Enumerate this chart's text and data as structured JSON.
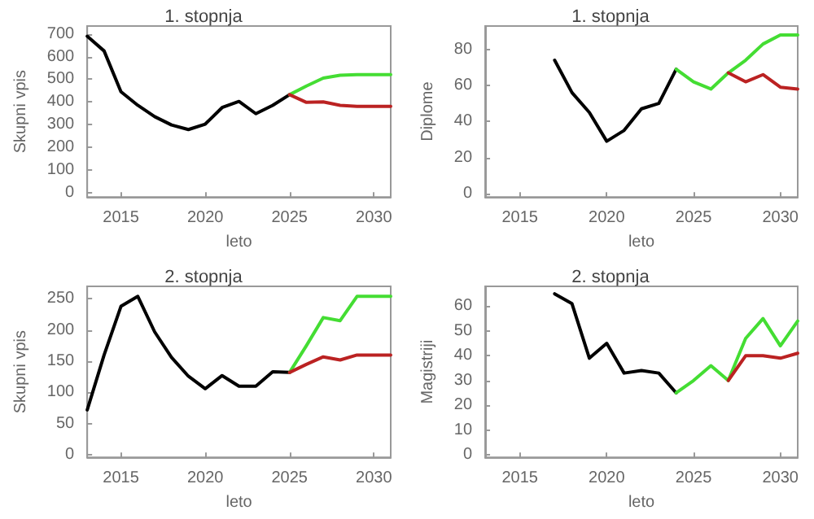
{
  "chart_data": [
    {
      "type": "line",
      "title": "1. stopnja",
      "xlabel": "leto",
      "ylabel": "Skupni vpis",
      "xlim": [
        2013,
        2031
      ],
      "ylim": [
        -20,
        735
      ],
      "xticks": [
        2015,
        2020,
        2025,
        2030
      ],
      "yticks": [
        0,
        100,
        200,
        300,
        400,
        500,
        600,
        700
      ],
      "marker": "none",
      "line_style": "solid",
      "series": [
        {
          "color": "#000000",
          "x": [
            2013,
            2014,
            2015,
            2016,
            2017,
            2018,
            2019,
            2020,
            2021,
            2022,
            2023,
            2024,
            2025
          ],
          "values": [
            690,
            625,
            445,
            385,
            335,
            298,
            278,
            302,
            375,
            402,
            348,
            385,
            432
          ]
        },
        {
          "color": "#44dd33",
          "x": [
            2025,
            2026,
            2027,
            2028,
            2029,
            2030,
            2031
          ],
          "values": [
            432,
            470,
            505,
            518,
            520,
            520,
            520
          ]
        },
        {
          "color": "#bb2222",
          "x": [
            2025,
            2026,
            2027,
            2028,
            2029,
            2030,
            2031
          ],
          "values": [
            432,
            398,
            400,
            385,
            380,
            380,
            380
          ]
        }
      ]
    },
    {
      "type": "line",
      "title": "1. stopnja",
      "xlabel": "leto",
      "ylabel": "Diplome",
      "xlim": [
        2013,
        2031
      ],
      "ylim": [
        -2,
        93
      ],
      "xticks": [
        2015,
        2020,
        2025,
        2030
      ],
      "yticks": [
        0,
        20,
        40,
        60,
        80
      ],
      "marker": "none",
      "line_style": "solid",
      "series": [
        {
          "color": "#000000",
          "x": [
            2017,
            2018,
            2019,
            2020,
            2021,
            2022,
            2023,
            2024
          ],
          "values": [
            74,
            56,
            45,
            29,
            35,
            47,
            50,
            69
          ]
        },
        {
          "color": "#44dd33",
          "x": [
            2024,
            2025,
            2026,
            2027,
            2028,
            2029,
            2030,
            2031
          ],
          "values": [
            69,
            62,
            58,
            67,
            74,
            83,
            88,
            88
          ]
        },
        {
          "color": "#bb2222",
          "x": [
            2027,
            2028,
            2029,
            2030,
            2031
          ],
          "values": [
            67,
            62,
            66,
            59,
            58
          ]
        }
      ]
    },
    {
      "type": "line",
      "title": "2. stopnja",
      "xlabel": "leto",
      "ylabel": "Skupni vpis",
      "xlim": [
        2013,
        2031
      ],
      "ylim": [
        -4,
        270
      ],
      "xticks": [
        2015,
        2020,
        2025,
        2030
      ],
      "yticks": [
        0,
        50,
        100,
        150,
        200,
        250
      ],
      "marker": "none",
      "line_style": "solid",
      "series": [
        {
          "color": "#000000",
          "x": [
            2013,
            2014,
            2015,
            2016,
            2017,
            2018,
            2019,
            2020,
            2021,
            2022,
            2023,
            2024,
            2025
          ],
          "values": [
            72,
            160,
            238,
            254,
            197,
            156,
            126,
            106,
            127,
            110,
            110,
            133,
            132
          ]
        },
        {
          "color": "#44dd33",
          "x": [
            2025,
            2026,
            2027,
            2028,
            2029,
            2030,
            2031
          ],
          "values": [
            132,
            175,
            220,
            215,
            254,
            254,
            254
          ]
        },
        {
          "color": "#bb2222",
          "x": [
            2025,
            2026,
            2027,
            2028,
            2029,
            2030,
            2031
          ],
          "values": [
            132,
            145,
            157,
            152,
            160,
            160,
            160
          ]
        }
      ]
    },
    {
      "type": "line",
      "title": "2. stopnja",
      "xlabel": "leto",
      "ylabel": "Magistriji",
      "xlim": [
        2013,
        2031
      ],
      "ylim": [
        -1,
        68
      ],
      "xticks": [
        2015,
        2020,
        2025,
        2030
      ],
      "yticks": [
        0,
        10,
        20,
        30,
        40,
        50,
        60
      ],
      "marker": "none",
      "line_style": "solid",
      "series": [
        {
          "color": "#000000",
          "x": [
            2017,
            2018,
            2019,
            2020,
            2021,
            2022,
            2023,
            2024
          ],
          "values": [
            65,
            61,
            39,
            45,
            33,
            34,
            33,
            25
          ]
        },
        {
          "color": "#44dd33",
          "x": [
            2024,
            2025,
            2026,
            2027,
            2028,
            2029,
            2030,
            2031
          ],
          "values": [
            25,
            30,
            36,
            30,
            47,
            55,
            44,
            54
          ]
        },
        {
          "color": "#bb2222",
          "x": [
            2027,
            2028,
            2029,
            2030,
            2031
          ],
          "values": [
            30,
            40,
            40,
            39,
            41
          ]
        }
      ]
    }
  ]
}
